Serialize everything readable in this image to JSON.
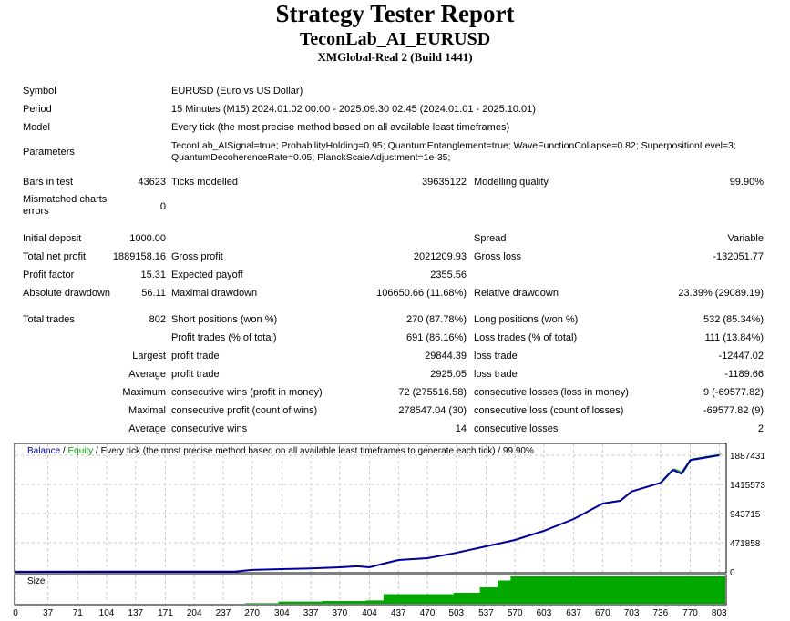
{
  "header": {
    "title": "Strategy Tester Report",
    "expert": "TeconLab_AI_EURUSD",
    "server": "XMGlobal-Real 2 (Build 1441)"
  },
  "info": {
    "symbol_label": "Symbol",
    "symbol": "EURUSD (Euro vs US Dollar)",
    "period_label": "Period",
    "period": "15 Minutes (M15) 2024.01.02 00:00 - 2025.09.30 02:45 (2024.01.01 - 2025.10.01)",
    "model_label": "Model",
    "model": "Every tick (the most precise method based on all available least timeframes)",
    "parameters_label": "Parameters",
    "parameters_line1": "TeconLab_AISignal=true; ProbabilityHolding=0.95; QuantumEntanglement=true; WaveFunctionCollapse=0.82; SuperpositionLevel=3;",
    "parameters_line2": "QuantumDecoherenceRate=0.05; PlanckScaleAdjustment=1e-35;"
  },
  "stats": {
    "bars_label": "Bars in test",
    "bars": "43623",
    "ticks_label": "Ticks modelled",
    "ticks": "39635122",
    "quality_label": "Modelling quality",
    "quality": "99.90%",
    "mismatch_label_1": "Mismatched charts",
    "mismatch_label_2": "errors",
    "mismatch": "0",
    "deposit_label": "Initial deposit",
    "deposit": "1000.00",
    "spread_label": "Spread",
    "spread": "Variable",
    "net_label": "Total net profit",
    "net": "1889158.16",
    "gross_profit_label": "Gross profit",
    "gross_profit": "2021209.93",
    "gross_loss_label": "Gross loss",
    "gross_loss": "-132051.77",
    "pf_label": "Profit factor",
    "pf": "15.31",
    "ep_label": "Expected payoff",
    "ep": "2355.56",
    "abs_dd_label": "Absolute drawdown",
    "abs_dd": "56.11",
    "max_dd_label": "Maximal drawdown",
    "max_dd": "106650.66 (11.68%)",
    "rel_dd_label": "Relative drawdown",
    "rel_dd": "23.39% (29089.19)",
    "trades_label": "Total trades",
    "trades": "802",
    "short_label": "Short positions (won %)",
    "short": "270 (87.78%)",
    "long_label": "Long positions (won %)",
    "long": "532 (85.34%)",
    "pt_label": "Profit trades (% of total)",
    "pt": "691 (86.16%)",
    "lt_label": "Loss trades (% of total)",
    "lt": "111 (13.84%)",
    "largest": "Largest",
    "largest_pt_label": "profit trade",
    "largest_pt": "29844.39",
    "largest_lt_label": "loss trade",
    "largest_lt": "-12447.02",
    "average": "Average",
    "avg_pt_label": "profit trade",
    "avg_pt": "2925.05",
    "avg_lt_label": "loss trade",
    "avg_lt": "-1189.66",
    "maximum": "Maximum",
    "max_cw_label": "consecutive wins (profit in money)",
    "max_cw": "72 (275516.58)",
    "max_cl_label": "consecutive losses (loss in money)",
    "max_cl": "9 (-69577.82)",
    "maximal": "Maximal",
    "mx_cp_label": "consecutive profit (count of wins)",
    "mx_cp": "278547.04 (30)",
    "mx_cl_label": "consecutive loss (count of losses)",
    "mx_cl": "-69577.82 (9)",
    "average2": "Average",
    "avg_cw_label": "consecutive wins",
    "avg_cw": "14",
    "avg_cl_label": "consecutive losses",
    "avg_cl": "2"
  },
  "chart_data": {
    "type": "line",
    "legend": {
      "balance": "Balance",
      "sep1": " / ",
      "equity": "Equity",
      "desc": " / Every tick (the most precise method based on all available least timeframes to generate each tick) / 99.90%"
    },
    "size_label": "Size",
    "colors": {
      "balance": "#00009c",
      "equity": "#00a000",
      "size": "#00a800",
      "grid": "#c8c8c8"
    },
    "xlim": [
      0,
      810
    ],
    "ylim": [
      0,
      2000000
    ],
    "yticks": [
      0,
      471858,
      943715,
      1415573,
      1887431
    ],
    "xticks": [
      0,
      37,
      71,
      104,
      137,
      171,
      204,
      237,
      270,
      304,
      337,
      370,
      404,
      437,
      470,
      503,
      537,
      570,
      603,
      637,
      670,
      703,
      736,
      770,
      803
    ],
    "balance": [
      [
        0,
        1000
      ],
      [
        250,
        5000
      ],
      [
        270,
        31000
      ],
      [
        304,
        44000
      ],
      [
        337,
        55000
      ],
      [
        370,
        74000
      ],
      [
        390,
        90000
      ],
      [
        404,
        74000
      ],
      [
        420,
        133000
      ],
      [
        437,
        192000
      ],
      [
        470,
        221000
      ],
      [
        500,
        300000
      ],
      [
        537,
        413000
      ],
      [
        570,
        516000
      ],
      [
        603,
        663000
      ],
      [
        637,
        855000
      ],
      [
        670,
        1106000
      ],
      [
        690,
        1150000
      ],
      [
        703,
        1300000
      ],
      [
        736,
        1440000
      ],
      [
        750,
        1650000
      ],
      [
        760,
        1590000
      ],
      [
        770,
        1810000
      ],
      [
        803,
        1887431
      ]
    ],
    "size": [
      [
        262,
        0.02
      ],
      [
        300,
        0.08
      ],
      [
        350,
        0.1
      ],
      [
        400,
        0.12
      ],
      [
        420,
        0.35
      ],
      [
        470,
        0.35
      ],
      [
        500,
        0.4
      ],
      [
        530,
        0.6
      ],
      [
        550,
        0.85
      ],
      [
        565,
        1.0
      ],
      [
        810,
        1.0
      ]
    ]
  }
}
